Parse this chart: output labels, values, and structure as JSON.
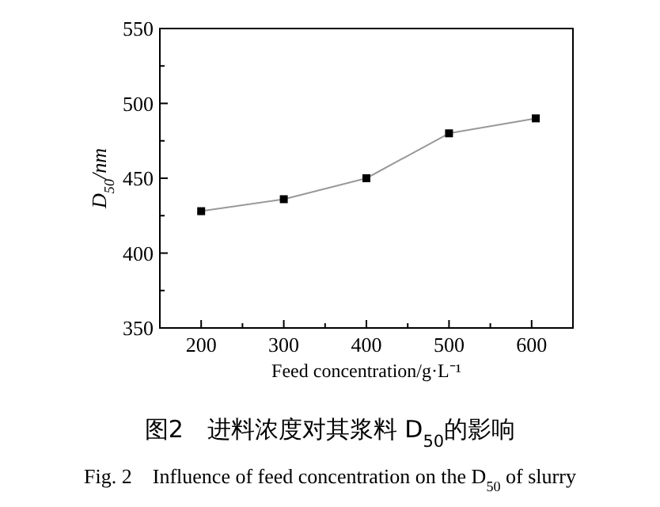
{
  "chart_data": {
    "type": "line",
    "title": "图2　进料浓度对其浆料 D$_{50}$的影响",
    "subtitle": "Fig. 2　Influence of feed concentration on the D$_{50}$ of slurry",
    "xlabel": "Feed concentration/g·L⁻¹",
    "ylabel": "D$_{50}$/nm",
    "x": [
      200,
      300,
      400,
      500,
      605
    ],
    "series": [
      {
        "color": "#999999",
        "values": [
          428,
          436,
          450,
          480,
          490
        ]
      }
    ],
    "marker": "square",
    "line_style": "solid",
    "grid": false,
    "xlim": [
      150,
      650
    ],
    "xticks": [
      200,
      {
        "value": 250,
        "label": null
      },
      300,
      {
        "value": 350,
        "label": null
      },
      400,
      {
        "value": 450,
        "label": null
      },
      500,
      {
        "value": 550,
        "label": null
      },
      600
    ],
    "ylim": [
      350,
      550
    ],
    "yticks": [
      350,
      {
        "value": 375,
        "label": null
      },
      400,
      {
        "value": 425,
        "label": null
      },
      450,
      {
        "value": 475,
        "label": null
      },
      500,
      {
        "value": 525,
        "label": null
      },
      550
    ]
  }
}
